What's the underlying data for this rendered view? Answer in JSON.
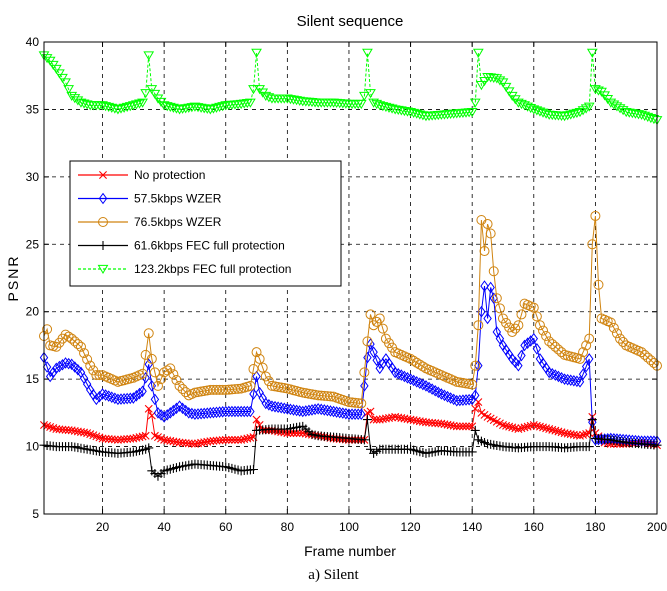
{
  "caption": "a) Silent",
  "chart_data": {
    "type": "line",
    "title": "Silent sequence",
    "xlabel": "Frame number",
    "ylabel": "PSNR",
    "xlim": [
      1,
      200
    ],
    "ylim": [
      5,
      40
    ],
    "xticks": [
      20,
      40,
      60,
      80,
      100,
      120,
      140,
      160,
      180,
      200
    ],
    "yticks": [
      5,
      10,
      15,
      20,
      25,
      30,
      35,
      40
    ],
    "grid": true,
    "legend_position": "middle-left",
    "series": [
      {
        "name": "No protection",
        "color": "#ff0000",
        "marker": "x",
        "points": [
          [
            1,
            11.6
          ],
          [
            5,
            11.3
          ],
          [
            10,
            11.2
          ],
          [
            15,
            11.0
          ],
          [
            20,
            10.6
          ],
          [
            25,
            10.5
          ],
          [
            30,
            10.6
          ],
          [
            34,
            10.8
          ],
          [
            35,
            12.8
          ],
          [
            36,
            12.3
          ],
          [
            37,
            10.8
          ],
          [
            40,
            10.5
          ],
          [
            45,
            10.3
          ],
          [
            50,
            10.2
          ],
          [
            55,
            10.4
          ],
          [
            60,
            10.5
          ],
          [
            65,
            10.5
          ],
          [
            69,
            10.7
          ],
          [
            70,
            12.0
          ],
          [
            71,
            11.6
          ],
          [
            72,
            11.2
          ],
          [
            75,
            11.2
          ],
          [
            80,
            11.0
          ],
          [
            85,
            11.0
          ],
          [
            90,
            10.8
          ],
          [
            95,
            10.6
          ],
          [
            100,
            10.5
          ],
          [
            105,
            10.5
          ],
          [
            106,
            12.5
          ],
          [
            107,
            12.6
          ],
          [
            108,
            12.0
          ],
          [
            110,
            12.0
          ],
          [
            115,
            12.2
          ],
          [
            120,
            12.0
          ],
          [
            125,
            11.8
          ],
          [
            130,
            11.7
          ],
          [
            135,
            11.5
          ],
          [
            140,
            11.5
          ],
          [
            141,
            12.8
          ],
          [
            142,
            13.3
          ],
          [
            143,
            12.5
          ],
          [
            145,
            12.2
          ],
          [
            150,
            11.6
          ],
          [
            155,
            11.3
          ],
          [
            160,
            11.6
          ],
          [
            165,
            11.3
          ],
          [
            170,
            11.0
          ],
          [
            175,
            10.8
          ],
          [
            178,
            11.0
          ],
          [
            179,
            12.2
          ],
          [
            180,
            11.0
          ],
          [
            183,
            10.3
          ],
          [
            185,
            10.2
          ],
          [
            190,
            10.2
          ],
          [
            195,
            10.3
          ],
          [
            200,
            10.1
          ]
        ]
      },
      {
        "name": "57.5kbps WZER",
        "color": "#0000ff",
        "marker": "diamond",
        "points": [
          [
            1,
            16.6
          ],
          [
            3,
            15.2
          ],
          [
            5,
            15.8
          ],
          [
            8,
            16.2
          ],
          [
            10,
            16.1
          ],
          [
            13,
            15.5
          ],
          [
            16,
            14.2
          ],
          [
            18,
            13.5
          ],
          [
            20,
            13.9
          ],
          [
            25,
            13.5
          ],
          [
            30,
            13.6
          ],
          [
            33,
            14.1
          ],
          [
            35,
            16.1
          ],
          [
            36,
            14.5
          ],
          [
            38,
            12.5
          ],
          [
            40,
            12.2
          ],
          [
            42,
            12.5
          ],
          [
            45,
            13.0
          ],
          [
            48,
            12.5
          ],
          [
            50,
            12.4
          ],
          [
            55,
            12.5
          ],
          [
            60,
            12.6
          ],
          [
            65,
            12.6
          ],
          [
            68,
            12.6
          ],
          [
            70,
            15.2
          ],
          [
            71,
            14.0
          ],
          [
            73,
            13.2
          ],
          [
            75,
            13.0
          ],
          [
            80,
            12.8
          ],
          [
            85,
            12.6
          ],
          [
            90,
            12.8
          ],
          [
            95,
            12.6
          ],
          [
            100,
            12.4
          ],
          [
            104,
            12.4
          ],
          [
            106,
            16.6
          ],
          [
            107,
            17.6
          ],
          [
            108,
            17.0
          ],
          [
            110,
            15.8
          ],
          [
            112,
            16.5
          ],
          [
            115,
            15.5
          ],
          [
            120,
            15.0
          ],
          [
            125,
            14.5
          ],
          [
            130,
            13.9
          ],
          [
            135,
            13.4
          ],
          [
            140,
            13.5
          ],
          [
            141,
            13.8
          ],
          [
            142,
            16.0
          ],
          [
            143,
            20.0
          ],
          [
            144,
            21.9
          ],
          [
            145,
            19.5
          ],
          [
            146,
            21.8
          ],
          [
            147,
            21.0
          ],
          [
            148,
            18.5
          ],
          [
            150,
            17.5
          ],
          [
            153,
            16.5
          ],
          [
            155,
            16.0
          ],
          [
            157,
            17.5
          ],
          [
            160,
            18.0
          ],
          [
            162,
            16.5
          ],
          [
            165,
            15.5
          ],
          [
            170,
            15.0
          ],
          [
            175,
            14.8
          ],
          [
            178,
            16.5
          ],
          [
            179,
            11.8
          ],
          [
            180,
            10.5
          ],
          [
            185,
            10.6
          ],
          [
            190,
            10.5
          ],
          [
            195,
            10.4
          ],
          [
            200,
            10.4
          ]
        ]
      },
      {
        "name": "76.5kbps WZER",
        "color": "#d08410",
        "marker": "circle",
        "points": [
          [
            1,
            18.2
          ],
          [
            2,
            18.7
          ],
          [
            3,
            17.5
          ],
          [
            5,
            17.4
          ],
          [
            8,
            18.3
          ],
          [
            10,
            18.0
          ],
          [
            13,
            17.4
          ],
          [
            16,
            16.0
          ],
          [
            18,
            15.3
          ],
          [
            20,
            15.3
          ],
          [
            25,
            14.8
          ],
          [
            30,
            15.1
          ],
          [
            33,
            15.4
          ],
          [
            34,
            16.8
          ],
          [
            35,
            18.4
          ],
          [
            36,
            16.5
          ],
          [
            38,
            14.5
          ],
          [
            40,
            15.5
          ],
          [
            42,
            15.8
          ],
          [
            45,
            14.5
          ],
          [
            48,
            13.8
          ],
          [
            50,
            14.0
          ],
          [
            55,
            14.2
          ],
          [
            60,
            14.2
          ],
          [
            65,
            14.3
          ],
          [
            68,
            14.5
          ],
          [
            70,
            17.0
          ],
          [
            71,
            16.5
          ],
          [
            73,
            15.2
          ],
          [
            75,
            14.5
          ],
          [
            80,
            14.3
          ],
          [
            85,
            14.0
          ],
          [
            90,
            13.8
          ],
          [
            95,
            13.7
          ],
          [
            100,
            13.3
          ],
          [
            104,
            13.2
          ],
          [
            106,
            17.8
          ],
          [
            107,
            19.8
          ],
          [
            108,
            19.0
          ],
          [
            110,
            19.5
          ],
          [
            112,
            18.0
          ],
          [
            115,
            17.0
          ],
          [
            120,
            16.5
          ],
          [
            125,
            15.8
          ],
          [
            130,
            15.3
          ],
          [
            135,
            14.8
          ],
          [
            140,
            14.6
          ],
          [
            141,
            16.0
          ],
          [
            142,
            19.0
          ],
          [
            143,
            26.8
          ],
          [
            144,
            24.5
          ],
          [
            145,
            26.5
          ],
          [
            146,
            25.8
          ],
          [
            147,
            23.0
          ],
          [
            148,
            21.0
          ],
          [
            150,
            19.5
          ],
          [
            153,
            18.5
          ],
          [
            155,
            19.0
          ],
          [
            157,
            20.6
          ],
          [
            160,
            20.3
          ],
          [
            162,
            19.0
          ],
          [
            165,
            17.8
          ],
          [
            170,
            16.8
          ],
          [
            175,
            16.5
          ],
          [
            178,
            18.0
          ],
          [
            179,
            25.0
          ],
          [
            180,
            27.1
          ],
          [
            181,
            22.0
          ],
          [
            182,
            19.5
          ],
          [
            185,
            19.2
          ],
          [
            188,
            18.0
          ],
          [
            190,
            17.5
          ],
          [
            195,
            17.0
          ],
          [
            200,
            16.0
          ]
        ]
      },
      {
        "name": "61.6kbps FEC full protection",
        "color": "#000000",
        "marker": "plus",
        "points": [
          [
            1,
            10.1
          ],
          [
            5,
            10.0
          ],
          [
            10,
            10.0
          ],
          [
            15,
            9.8
          ],
          [
            20,
            9.6
          ],
          [
            25,
            9.5
          ],
          [
            30,
            9.6
          ],
          [
            34,
            9.8
          ],
          [
            35,
            9.9
          ],
          [
            36,
            8.2
          ],
          [
            38,
            7.8
          ],
          [
            40,
            8.2
          ],
          [
            45,
            8.5
          ],
          [
            50,
            8.7
          ],
          [
            55,
            8.6
          ],
          [
            60,
            8.5
          ],
          [
            65,
            8.2
          ],
          [
            69,
            8.3
          ],
          [
            70,
            11.2
          ],
          [
            75,
            11.3
          ],
          [
            80,
            11.3
          ],
          [
            85,
            11.5
          ],
          [
            88,
            10.9
          ],
          [
            90,
            10.8
          ],
          [
            95,
            10.7
          ],
          [
            100,
            10.6
          ],
          [
            105,
            10.5
          ],
          [
            106,
            12.0
          ],
          [
            107,
            9.8
          ],
          [
            108,
            9.5
          ],
          [
            110,
            9.8
          ],
          [
            115,
            9.8
          ],
          [
            120,
            9.8
          ],
          [
            125,
            9.5
          ],
          [
            130,
            9.7
          ],
          [
            135,
            9.6
          ],
          [
            140,
            9.6
          ],
          [
            141,
            11.2
          ],
          [
            142,
            10.5
          ],
          [
            145,
            10.2
          ],
          [
            150,
            10.0
          ],
          [
            155,
            9.9
          ],
          [
            160,
            10.0
          ],
          [
            165,
            10.0
          ],
          [
            170,
            9.9
          ],
          [
            175,
            10.0
          ],
          [
            178,
            10.0
          ],
          [
            179,
            12.0
          ],
          [
            180,
            10.6
          ],
          [
            185,
            10.5
          ],
          [
            190,
            10.3
          ],
          [
            195,
            10.2
          ],
          [
            200,
            10.1
          ]
        ]
      },
      {
        "name": "123.2kbps FEC full protection",
        "color": "#00ff00",
        "marker": "triangle-down",
        "points": [
          [
            1,
            39.0
          ],
          [
            3,
            38.6
          ],
          [
            5,
            38.0
          ],
          [
            8,
            37.0
          ],
          [
            10,
            36.0
          ],
          [
            13,
            35.5
          ],
          [
            16,
            35.3
          ],
          [
            20,
            35.3
          ],
          [
            25,
            35.0
          ],
          [
            30,
            35.3
          ],
          [
            33,
            35.5
          ],
          [
            34,
            36.2
          ],
          [
            35,
            39.0
          ],
          [
            36,
            36.5
          ],
          [
            38,
            35.8
          ],
          [
            40,
            35.3
          ],
          [
            45,
            35.0
          ],
          [
            50,
            35.2
          ],
          [
            55,
            35.0
          ],
          [
            60,
            35.3
          ],
          [
            65,
            35.4
          ],
          [
            68,
            35.5
          ],
          [
            69,
            36.5
          ],
          [
            70,
            39.2
          ],
          [
            71,
            36.5
          ],
          [
            73,
            36.0
          ],
          [
            75,
            35.8
          ],
          [
            80,
            35.8
          ],
          [
            85,
            35.6
          ],
          [
            90,
            35.5
          ],
          [
            95,
            35.5
          ],
          [
            100,
            35.4
          ],
          [
            104,
            35.4
          ],
          [
            105,
            36.0
          ],
          [
            106,
            39.2
          ],
          [
            107,
            36.2
          ],
          [
            108,
            35.5
          ],
          [
            110,
            35.3
          ],
          [
            115,
            35.0
          ],
          [
            120,
            34.8
          ],
          [
            125,
            34.5
          ],
          [
            130,
            34.6
          ],
          [
            135,
            34.7
          ],
          [
            140,
            34.8
          ],
          [
            141,
            35.5
          ],
          [
            142,
            39.2
          ],
          [
            143,
            36.8
          ],
          [
            145,
            37.4
          ],
          [
            148,
            37.3
          ],
          [
            150,
            37.0
          ],
          [
            153,
            36.0
          ],
          [
            155,
            35.5
          ],
          [
            160,
            35.0
          ],
          [
            165,
            34.6
          ],
          [
            170,
            34.5
          ],
          [
            175,
            34.8
          ],
          [
            178,
            35.2
          ],
          [
            179,
            39.2
          ],
          [
            180,
            36.5
          ],
          [
            182,
            36.3
          ],
          [
            185,
            35.5
          ],
          [
            190,
            34.8
          ],
          [
            195,
            34.6
          ],
          [
            200,
            34.2
          ]
        ]
      }
    ]
  }
}
